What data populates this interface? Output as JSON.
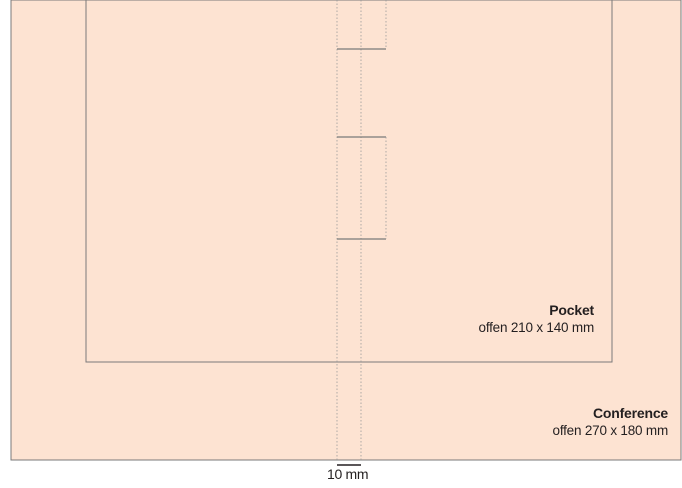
{
  "colors": {
    "background": "#fde3d2",
    "outline": "#7a7a7a",
    "dotted": "#9a9a9a",
    "text": "#231f20"
  },
  "pocket": {
    "title": "Pocket",
    "size": "offen 210 x 140 mm"
  },
  "conference": {
    "title": "Conference",
    "size": "offen 270 x 180 mm"
  },
  "spine": {
    "measure": "10 mm"
  }
}
